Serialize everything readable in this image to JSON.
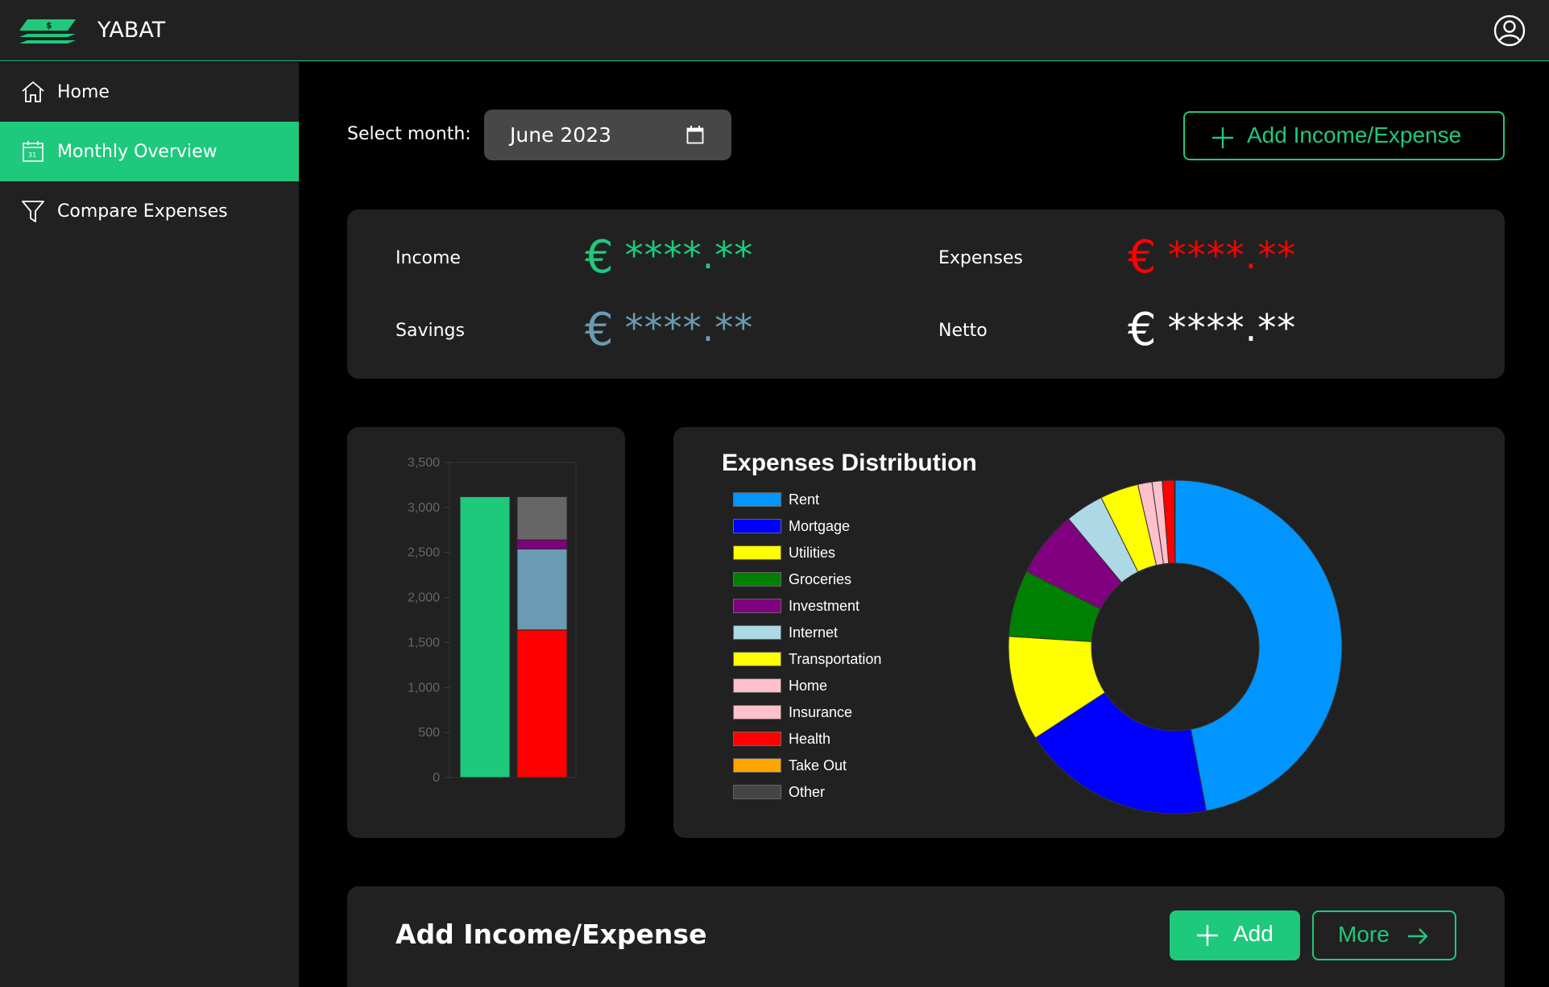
{
  "header": {
    "title": "YABAT",
    "logo_icon": "money-stack-icon",
    "user_icon": "user-circle-icon"
  },
  "sidebar": {
    "items": [
      {
        "label": "Home",
        "icon": "home-icon",
        "active": false
      },
      {
        "label": "Monthly Overview",
        "icon": "calendar-icon",
        "active": true
      },
      {
        "label": "Compare Expenses",
        "icon": "filter-icon",
        "active": false
      }
    ]
  },
  "month_selector": {
    "label": "Select month:",
    "value": "June 2023"
  },
  "actions": {
    "add_income_expense_label": "Add Income/Expense"
  },
  "summary": {
    "income": {
      "label": "Income",
      "currency": "€",
      "value": "****.**",
      "color": "#1ec97c"
    },
    "expenses": {
      "label": "Expenses",
      "currency": "€",
      "value": "****.**",
      "color": "#ff0000"
    },
    "savings": {
      "label": "Savings",
      "currency": "€",
      "value": "****.**",
      "color": "#6b9bb2"
    },
    "netto": {
      "label": "Netto",
      "currency": "€",
      "value": "****.**",
      "color": "#ffffff"
    }
  },
  "chart_data": [
    {
      "type": "bar",
      "stacked": true,
      "categories": [
        "",
        ""
      ],
      "y_ticks": [
        "0",
        "500",
        "1,000",
        "1,500",
        "2,000",
        "2,500",
        "3,000",
        "3,500"
      ],
      "ylim": [
        0,
        3500
      ],
      "series": [
        {
          "values": [
            3120,
            0
          ],
          "color": "#1ec97c"
        },
        {
          "values": [
            0,
            1640
          ],
          "color": "#ff0000"
        },
        {
          "values": [
            0,
            900
          ],
          "color": "#6b9bb2"
        },
        {
          "values": [
            0,
            100
          ],
          "color": "#800080"
        },
        {
          "values": [
            0,
            480
          ],
          "color": "#666666"
        }
      ]
    },
    {
      "type": "pie",
      "donut": true,
      "title": "Expenses Distribution",
      "legend_placement": "left",
      "categories": [
        "Rent",
        "Mortgage",
        "Utilities",
        "Groceries",
        "Investment",
        "Internet",
        "Transportation",
        "Home",
        "Insurance",
        "Health",
        "Take Out",
        "Other"
      ],
      "values": [
        1200,
        480,
        260,
        165,
        165,
        95,
        95,
        35,
        25,
        30,
        0,
        2
      ],
      "colors": [
        "#0095ff",
        "#0000ff",
        "#ffff00",
        "#008000",
        "#800080",
        "#add8e6",
        "#ffff00",
        "#ffc0cb",
        "#ffc0cb",
        "#ff0000",
        "#ffa500",
        "#444444"
      ]
    }
  ],
  "add_section": {
    "title": "Add Income/Expense",
    "add_label": "Add",
    "more_label": "More"
  }
}
